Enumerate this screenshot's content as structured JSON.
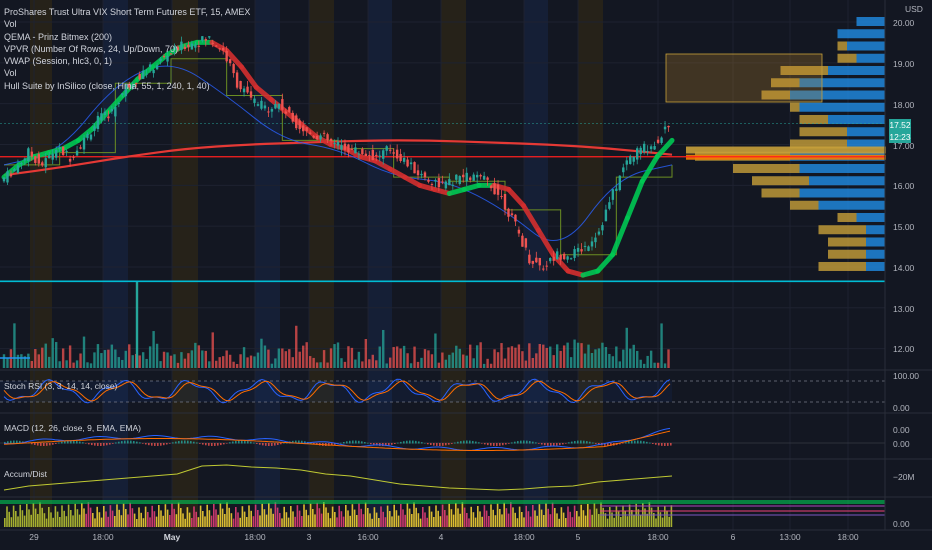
{
  "header": {
    "title": "ProShares Trust Ultra VIX Short Term Futures ETF, 15, AMEX",
    "indicators": [
      "Vol",
      "QEMA - Prinz Bitmex (200)",
      "VPVR (Number Of Rows, 24, Up/Down, 70)",
      "VWAP (Session, hlc3, 0, 1)",
      "Vol",
      "Hull Suite by InSilico (close, Hma, 55, 1, 240, 1, 40)"
    ]
  },
  "price_axis": {
    "currency": "USD",
    "ticks": [
      "20.00",
      "19.00",
      "18.00",
      "17.00",
      "16.00",
      "15.00",
      "14.00",
      "13.00",
      "12.00"
    ],
    "last_price": "17.52",
    "countdown": "12:23"
  },
  "x_axis": {
    "ticks": [
      "29",
      "18:00",
      "May",
      "18:00",
      "3",
      "16:00",
      "4",
      "18:00",
      "5",
      "18:00",
      "6",
      "13:00",
      "18:00"
    ]
  },
  "panes": {
    "stoch": {
      "label": "Stoch RSI (3, 3, 14, 14, close)",
      "ticks": [
        "100.00",
        "0.00"
      ]
    },
    "macd": {
      "label": "MACD (12, 26, close, 9, EMA, EMA)",
      "ticks": [
        "0.00",
        "0.00"
      ]
    },
    "accum": {
      "label": "Accum/Dist",
      "ticks": [
        "−20M"
      ]
    },
    "hist": {
      "ticks": [
        "0.00"
      ]
    }
  },
  "colors": {
    "background": "#131722",
    "up": "#26a69a",
    "down": "#ef5350",
    "hull_up": "#00c853",
    "hull_down": "#d32f2f",
    "qema": "#e53935",
    "vwap": "#2962ff",
    "support": "#00bcd4",
    "vpvr_up": "#2196f3",
    "vpvr_down": "#c8a03a"
  },
  "chart_data": {
    "type": "candlestick",
    "title": "ProShares Trust Ultra VIX Short Term Futures ETF, 15, AMEX",
    "ylim": [
      13.3,
      20.2
    ],
    "support_level": 13.65,
    "hline_level": 16.7,
    "series": [
      {
        "name": "close",
        "values": [
          16.1,
          16.4,
          16.8,
          16.5,
          16.9,
          16.7,
          17.1,
          17.6,
          17.8,
          18.4,
          18.7,
          18.9,
          19.2,
          19.4,
          19.5,
          19.6,
          19.3,
          18.5,
          18.1,
          17.9,
          18.0,
          17.6,
          17.3,
          17.2,
          17.0,
          16.9,
          16.8,
          16.7,
          16.9,
          16.6,
          16.3,
          16.1,
          16.0,
          16.2,
          16.2,
          16.1,
          15.7,
          15.0,
          14.2,
          14.0,
          14.3,
          14.3,
          14.5,
          14.9,
          15.8,
          16.6,
          16.9,
          17.0,
          17.5
        ]
      },
      {
        "name": "Hull Suite",
        "values": [
          16.2,
          16.5,
          16.7,
          16.8,
          16.9,
          17.1,
          17.4,
          17.8,
          18.2,
          18.6,
          18.9,
          19.2,
          19.4,
          19.5,
          19.5,
          19.3,
          18.9,
          18.4,
          18.1,
          17.8,
          17.5,
          17.2,
          17.0,
          16.9,
          16.7,
          16.6,
          16.4,
          16.2,
          16.0,
          15.9,
          15.8,
          15.9,
          16.0,
          16.0,
          15.9,
          15.5,
          14.9,
          14.3,
          13.9,
          13.8,
          13.9,
          14.3,
          15.2,
          16.1,
          16.7,
          17.1
        ]
      },
      {
        "name": "QEMA - Prinz Bitmex (200)",
        "values": [
          16.25,
          16.45,
          16.7,
          16.9,
          17.0,
          17.05,
          17.1,
          17.1,
          17.05,
          17.0,
          16.9,
          16.75
        ]
      },
      {
        "name": "VWAP",
        "values": [
          16.5,
          16.8,
          18.5,
          19.1,
          18.2,
          17.1,
          16.9,
          16.2,
          16.1,
          15.4,
          14.3,
          16.2,
          16.5
        ]
      }
    ],
    "vpvr": {
      "prices": [
        20.0,
        19.7,
        19.4,
        19.1,
        18.8,
        18.5,
        18.2,
        17.9,
        17.6,
        17.3,
        17.0,
        16.7,
        16.4,
        16.1,
        15.8,
        15.5,
        15.2,
        14.9,
        14.6,
        14.3,
        14.0
      ],
      "up": [
        0.3,
        0.5,
        0.4,
        0.3,
        0.6,
        0.9,
        1.0,
        0.9,
        0.6,
        0.4,
        0.4,
        1.0,
        0.9,
        0.8,
        0.9,
        0.7,
        0.3,
        0.2,
        0.2,
        0.2,
        0.2
      ],
      "down": [
        0.0,
        0.0,
        0.1,
        0.2,
        0.5,
        0.3,
        0.3,
        0.1,
        0.3,
        0.5,
        0.6,
        1.0,
        0.7,
        0.6,
        0.4,
        0.3,
        0.2,
        0.5,
        0.4,
        0.4,
        0.5
      ]
    },
    "volume_note": "volume bars colored by candle direction"
  }
}
